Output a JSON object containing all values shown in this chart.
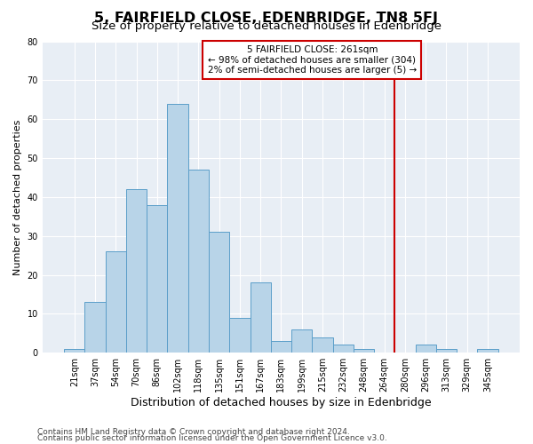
{
  "title": "5, FAIRFIELD CLOSE, EDENBRIDGE, TN8 5FJ",
  "subtitle": "Size of property relative to detached houses in Edenbridge",
  "xlabel": "Distribution of detached houses by size in Edenbridge",
  "ylabel": "Number of detached properties",
  "bar_labels": [
    "21sqm",
    "37sqm",
    "54sqm",
    "70sqm",
    "86sqm",
    "102sqm",
    "118sqm",
    "135sqm",
    "151sqm",
    "167sqm",
    "183sqm",
    "199sqm",
    "215sqm",
    "232sqm",
    "248sqm",
    "264sqm",
    "280sqm",
    "296sqm",
    "313sqm",
    "329sqm",
    "345sqm"
  ],
  "bar_values": [
    1,
    13,
    26,
    42,
    38,
    64,
    47,
    31,
    9,
    18,
    3,
    6,
    4,
    2,
    1,
    0,
    0,
    2,
    1,
    0,
    1
  ],
  "bar_color": "#b8d4e8",
  "bar_edge_color": "#5b9ec9",
  "vline_color": "#cc0000",
  "vline_pos": 15.5,
  "annotation_text": "5 FAIRFIELD CLOSE: 261sqm\n← 98% of detached houses are smaller (304)\n2% of semi-detached houses are larger (5) →",
  "annotation_box_edge_color": "#cc0000",
  "annotation_bg": "white",
  "ylim": [
    0,
    80
  ],
  "yticks": [
    0,
    10,
    20,
    30,
    40,
    50,
    60,
    70,
    80
  ],
  "footer_line1": "Contains HM Land Registry data © Crown copyright and database right 2024.",
  "footer_line2": "Contains public sector information licensed under the Open Government Licence v3.0.",
  "bg_color": "#e8eef5",
  "title_fontsize": 11.5,
  "subtitle_fontsize": 9.5,
  "xlabel_fontsize": 9,
  "ylabel_fontsize": 8,
  "tick_fontsize": 7,
  "annot_fontsize": 7.5,
  "footer_fontsize": 6.5
}
